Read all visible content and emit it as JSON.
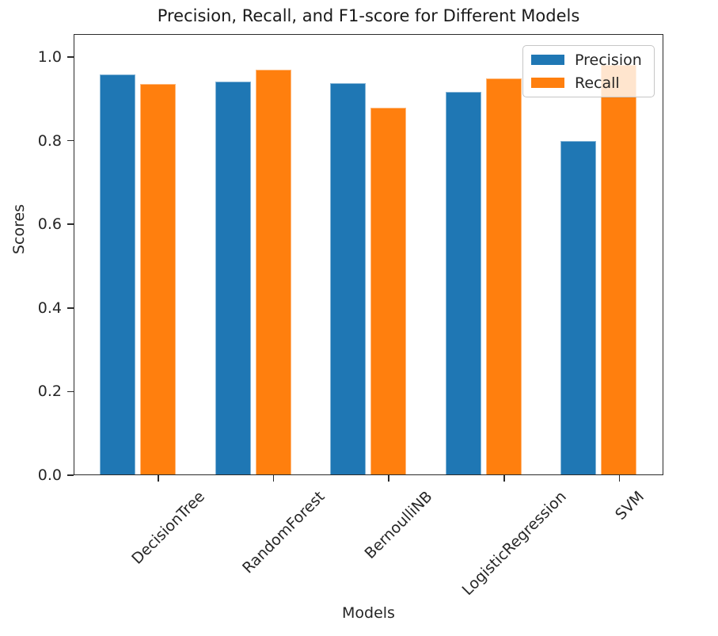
{
  "chart_data": {
    "type": "bar",
    "title": "Precision, Recall, and F1-score for Different Models",
    "xlabel": "Models",
    "ylabel": "Scores",
    "categories": [
      "DecisionTree",
      "RandomForest",
      "BernoulliNB",
      "LogisticRegression",
      "SVM"
    ],
    "series": [
      {
        "name": "Precision",
        "color": "#1f77b4",
        "values": [
          0.958,
          0.941,
          0.938,
          0.917,
          0.8
        ]
      },
      {
        "name": "Recall",
        "color": "#ff7f0e",
        "values": [
          0.936,
          0.969,
          0.879,
          0.949,
          0.981
        ]
      }
    ],
    "ylim": [
      0,
      1.055
    ],
    "yticks": [
      0.0,
      0.2,
      0.4,
      0.6,
      0.8,
      1.0
    ],
    "ytick_labels": [
      "0.0",
      "0.2",
      "0.4",
      "0.6",
      "0.8",
      "1.0"
    ],
    "legend": {
      "position": "upper right",
      "entries": [
        "Precision",
        "Recall"
      ],
      "frame_color": "#c6c6c6"
    },
    "grid": false,
    "axis_color": "#2b2b2b",
    "text_color": "#262626"
  }
}
